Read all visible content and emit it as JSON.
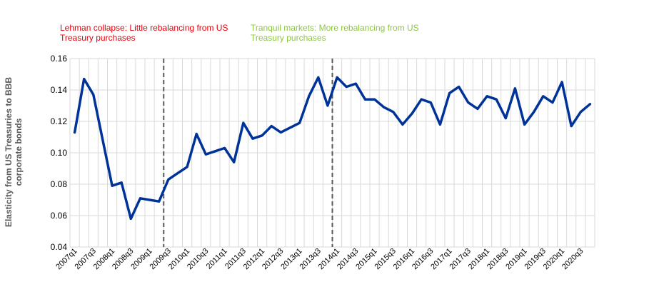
{
  "annotations": {
    "left": "Lehman collapse: Little rebalancing from US Treasury purchases",
    "right": "Tranquil markets: More rebalancing from US Treasury purchases"
  },
  "colors": {
    "line": "#003399",
    "annotation_left": "#e8000b",
    "annotation_right": "#8dc63f",
    "grid": "#d9d9d9",
    "marker_line": "#595959"
  },
  "chart_data": {
    "type": "line",
    "title": "",
    "xlabel": "",
    "ylabel": "Elasticity from US Treasuries to BBB corporate bonds",
    "ylim": [
      0.04,
      0.16
    ],
    "yticks": [
      "0.04",
      "0.06",
      "0.08",
      "0.10",
      "0.12",
      "0.14",
      "0.16"
    ],
    "grid": true,
    "legend": "none",
    "x": [
      "2007q1",
      "2007q2",
      "2007q3",
      "2007q4",
      "2008q1",
      "2008q2",
      "2008q3",
      "2008q4",
      "2009q1",
      "2009q2",
      "2009q3",
      "2009q4",
      "2010q1",
      "2010q2",
      "2010q3",
      "2010q4",
      "2011q1",
      "2011q2",
      "2011q3",
      "2011q4",
      "2012q1",
      "2012q2",
      "2012q3",
      "2012q4",
      "2013q1",
      "2013q2",
      "2013q3",
      "2013q4",
      "2014q1",
      "2014q2",
      "2014q3",
      "2014q4",
      "2015q1",
      "2015q2",
      "2015q3",
      "2015q4",
      "2016q1",
      "2016q2",
      "2016q3",
      "2016q4",
      "2017q1",
      "2017q2",
      "2017q3",
      "2017q4",
      "2018q1",
      "2018q2",
      "2018q3",
      "2018q4",
      "2019q1",
      "2019q2",
      "2019q3",
      "2019q4",
      "2020q1",
      "2020q2",
      "2020q3",
      "2020q4"
    ],
    "x_tick_labels": [
      "2007q1",
      "2007q3",
      "2008q1",
      "2008q3",
      "2009q1",
      "2009q3",
      "2010q1",
      "2010q3",
      "2011q1",
      "2011q3",
      "2012q1",
      "2012q3",
      "2013q1",
      "2013q3",
      "2014q1",
      "2014q3",
      "2015q1",
      "2015q3",
      "2016q1",
      "2016q3",
      "2017q1",
      "2017q3",
      "2018q1",
      "2018q3",
      "2019q1",
      "2019q3",
      "2020q1",
      "2020q3"
    ],
    "vertical_markers": [
      "2009q3",
      "2014q1"
    ],
    "series": [
      {
        "values": [
          0.113,
          0.147,
          0.137,
          0.108,
          0.079,
          0.081,
          0.058,
          0.071,
          0.07,
          0.069,
          0.083,
          0.087,
          0.091,
          0.112,
          0.099,
          0.101,
          0.103,
          0.094,
          0.119,
          0.109,
          0.111,
          0.117,
          0.113,
          0.116,
          0.119,
          0.136,
          0.148,
          0.13,
          0.148,
          0.142,
          0.144,
          0.134,
          0.134,
          0.129,
          0.126,
          0.118,
          0.125,
          0.134,
          0.132,
          0.118,
          0.138,
          0.142,
          0.132,
          0.128,
          0.136,
          0.134,
          0.122,
          0.141,
          0.118,
          0.126,
          0.136,
          0.132,
          0.145,
          0.117,
          0.126,
          0.131
        ]
      }
    ]
  }
}
